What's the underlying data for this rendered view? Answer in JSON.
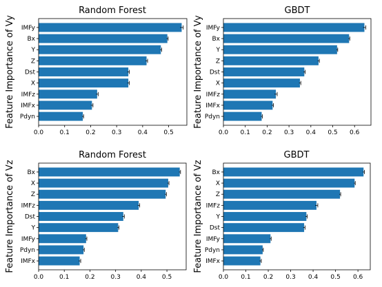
{
  "chart_data": [
    {
      "type": "bar",
      "orientation": "horizontal",
      "title": "Random Forest",
      "ylabel": "Feature Importance of Vy",
      "categories": [
        "IMFy",
        "Bx",
        "Y",
        "Z",
        "Dst",
        "X",
        "IMFz",
        "IMFx",
        "Pdyn"
      ],
      "values": [
        0.55,
        0.495,
        0.47,
        0.415,
        0.345,
        0.345,
        0.225,
        0.205,
        0.17
      ],
      "errors": [
        0.006,
        0.003,
        0.003,
        0.004,
        0.004,
        0.004,
        0.004,
        0.004,
        0.003
      ],
      "xlim": [
        0,
        0.57
      ],
      "xticks": [
        0.0,
        0.1,
        0.2,
        0.3,
        0.4,
        0.5
      ],
      "xtick_labels": [
        "0.0",
        "0.1",
        "0.2",
        "0.3",
        "0.4",
        "0.5"
      ],
      "grid": false,
      "color": "#1f77b4"
    },
    {
      "type": "bar",
      "orientation": "horizontal",
      "title": "GBDT",
      "ylabel": "Feature Importance of Vy",
      "categories": [
        "IMFy",
        "Bx",
        "Y",
        "Z",
        "Dst",
        "X",
        "IMFz",
        "IMFx",
        "Pdyn"
      ],
      "values": [
        0.645,
        0.575,
        0.52,
        0.435,
        0.37,
        0.35,
        0.24,
        0.225,
        0.175
      ],
      "errors": [
        0.006,
        0.003,
        0.003,
        0.004,
        0.004,
        0.004,
        0.006,
        0.004,
        0.003
      ],
      "xlim": [
        0,
        0.675
      ],
      "xticks": [
        0.0,
        0.1,
        0.2,
        0.3,
        0.4,
        0.5,
        0.6
      ],
      "xtick_labels": [
        "0.0",
        "0.1",
        "0.2",
        "0.3",
        "0.4",
        "0.5",
        "0.6"
      ],
      "grid": false,
      "color": "#1f77b4"
    },
    {
      "type": "bar",
      "orientation": "horizontal",
      "title": "Random Forest",
      "ylabel": "Feature Importance of Vz",
      "categories": [
        "Bx",
        "X",
        "Z",
        "IMFz",
        "Dst",
        "Y",
        "IMFy",
        "Pdyn",
        "IMFx"
      ],
      "values": [
        0.55,
        0.505,
        0.495,
        0.39,
        0.33,
        0.31,
        0.185,
        0.175,
        0.16
      ],
      "errors": [
        0.003,
        0.003,
        0.003,
        0.004,
        0.004,
        0.003,
        0.003,
        0.003,
        0.004
      ],
      "xlim": [
        0,
        0.575
      ],
      "xticks": [
        0.0,
        0.1,
        0.2,
        0.3,
        0.4,
        0.5
      ],
      "xtick_labels": [
        "0.0",
        "0.1",
        "0.2",
        "0.3",
        "0.4",
        "0.5"
      ],
      "grid": false,
      "color": "#1f77b4"
    },
    {
      "type": "bar",
      "orientation": "horizontal",
      "title": "GBDT",
      "ylabel": "Feature Importance of Vz",
      "categories": [
        "Bx",
        "X",
        "Z",
        "IMFz",
        "Y",
        "Dst",
        "IMFy",
        "Pdyn",
        "IMFx"
      ],
      "values": [
        0.625,
        0.585,
        0.52,
        0.415,
        0.37,
        0.36,
        0.21,
        0.175,
        0.165
      ],
      "errors": [
        0.004,
        0.003,
        0.003,
        0.006,
        0.004,
        0.004,
        0.003,
        0.003,
        0.004
      ],
      "xlim": [
        0,
        0.655
      ],
      "xticks": [
        0.0,
        0.1,
        0.2,
        0.3,
        0.4,
        0.5,
        0.6
      ],
      "xtick_labels": [
        "0.0",
        "0.1",
        "0.2",
        "0.3",
        "0.4",
        "0.5",
        "0.6"
      ],
      "grid": false,
      "color": "#1f77b4"
    }
  ]
}
